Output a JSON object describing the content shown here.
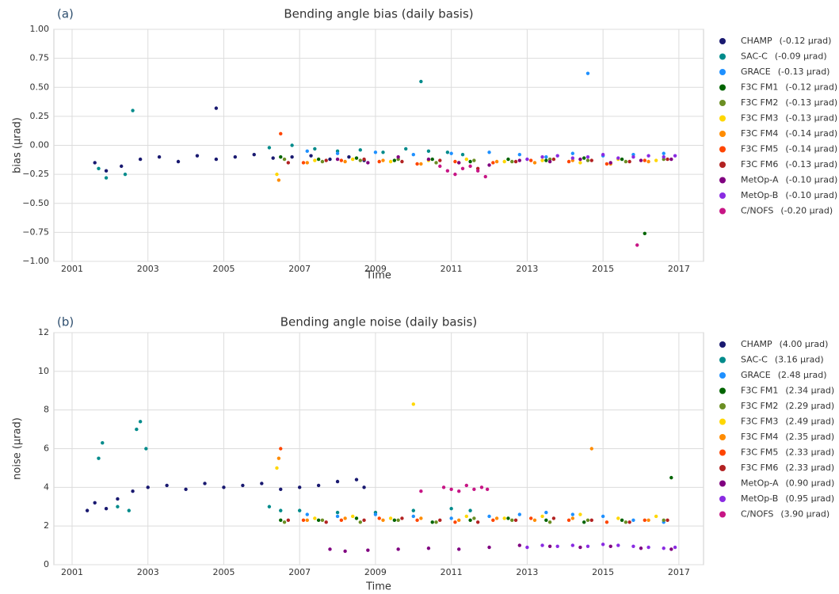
{
  "chart_data": [
    {
      "type": "scatter",
      "panel_label": "(a)",
      "title": "Bending angle bias (daily basis)",
      "x_label": "Time",
      "y_label": "bias (μrad)",
      "xlim": [
        2000.52,
        2017.65
      ],
      "xticks": [
        2001,
        2003,
        2005,
        2007,
        2009,
        2011,
        2013,
        2015,
        2017
      ],
      "ylim": [
        -1,
        1
      ],
      "yticks": [
        {
          "value": -1,
          "label": "−1.00"
        },
        {
          "value": -0.75,
          "label": "−0.75"
        },
        {
          "value": -0.5,
          "label": "−0.50"
        },
        {
          "value": -0.25,
          "label": "−0.25"
        },
        {
          "value": 0,
          "label": "0.00"
        },
        {
          "value": 0.25,
          "label": "0.25"
        },
        {
          "value": 0.5,
          "label": "0.50"
        },
        {
          "value": 0.75,
          "label": "0.75"
        },
        {
          "value": 1,
          "label": "1.00"
        }
      ],
      "grid": true,
      "legend": "outside-right",
      "series": [
        {
          "name": "CHAMP",
          "note": "(-0.12 μrad)",
          "color": "#191970",
          "x": [
            2001.6,
            2001.9,
            2002.3,
            2002.8,
            2003.3,
            2003.8,
            2004.3,
            2004.8,
            2005.3,
            2005.8,
            2006.3,
            2006.8,
            2007.3,
            2007.8,
            2008.3,
            2008.7,
            2004.8
          ],
          "values": [
            -0.15,
            -0.22,
            -0.18,
            -0.12,
            -0.1,
            -0.14,
            -0.09,
            -0.12,
            -0.1,
            -0.08,
            -0.11,
            -0.1,
            -0.09,
            -0.12,
            -0.1,
            -0.13,
            0.32
          ]
        },
        {
          "name": "SAC-C",
          "note": "(-0.09 μrad)",
          "color": "#008b8b",
          "x": [
            2001.7,
            2001.9,
            2002.4,
            2002.6,
            2006.2,
            2006.8,
            2007.4,
            2008,
            2008.6,
            2009.2,
            2009.8,
            2010.4,
            2010.9,
            2011.3,
            2010.2
          ],
          "values": [
            -0.2,
            -0.28,
            -0.25,
            0.3,
            -0.02,
            0,
            -0.03,
            -0.05,
            -0.04,
            -0.06,
            -0.03,
            -0.05,
            -0.06,
            -0.08,
            0.55
          ]
        },
        {
          "name": "GRACE",
          "note": "(-0.13 μrad)",
          "color": "#1e90ff",
          "x": [
            2007.2,
            2008,
            2009,
            2010,
            2011,
            2012,
            2012.8,
            2013.5,
            2014.2,
            2015,
            2015.8,
            2016.6,
            2014.6
          ],
          "values": [
            -0.05,
            -0.07,
            -0.06,
            -0.08,
            -0.07,
            -0.06,
            -0.08,
            -0.1,
            -0.07,
            -0.09,
            -0.08,
            -0.07,
            0.62
          ]
        },
        {
          "name": "F3C FM1",
          "note": "(-0.12 μrad)",
          "color": "#006400",
          "x": [
            2006.5,
            2007.5,
            2008.5,
            2009.5,
            2010.5,
            2011.5,
            2012.5,
            2013.5,
            2014.5,
            2015.5,
            2016.1
          ],
          "values": [
            -0.1,
            -0.12,
            -0.11,
            -0.13,
            -0.12,
            -0.14,
            -0.12,
            -0.13,
            -0.11,
            -0.12,
            -0.76
          ]
        },
        {
          "name": "F3C FM2",
          "note": "(-0.13 μrad)",
          "color": "#6b8e23",
          "x": [
            2006.6,
            2007.6,
            2008.6,
            2009.6,
            2010.6,
            2011.6,
            2012.6,
            2013.6,
            2014.6,
            2015.6,
            2016.6
          ],
          "values": [
            -0.12,
            -0.14,
            -0.13,
            -0.12,
            -0.15,
            -0.13,
            -0.14,
            -0.12,
            -0.13,
            -0.14,
            -0.12
          ]
        },
        {
          "name": "F3C FM3",
          "note": "(-0.13 μrad)",
          "color": "#ffd700",
          "x": [
            2006.4,
            2007.4,
            2008.4,
            2009.4,
            2010.4,
            2011.4,
            2012.4,
            2013.4,
            2014.4,
            2015.4,
            2016.4
          ],
          "values": [
            -0.25,
            -0.13,
            -0.12,
            -0.14,
            -0.13,
            -0.12,
            -0.14,
            -0.13,
            -0.15,
            -0.12,
            -0.13
          ]
        },
        {
          "name": "F3C FM4",
          "note": "(-0.14 μrad)",
          "color": "#ff8c00",
          "x": [
            2006.45,
            2007.2,
            2008.2,
            2009.2,
            2010.2,
            2011.2,
            2012.2,
            2013.2,
            2014.2,
            2015.2,
            2016.2
          ],
          "values": [
            -0.3,
            -0.15,
            -0.14,
            -0.13,
            -0.16,
            -0.15,
            -0.14,
            -0.15,
            -0.13,
            -0.16,
            -0.14
          ]
        },
        {
          "name": "F3C FM5",
          "note": "(-0.14 μrad)",
          "color": "#ff4500",
          "x": [
            2006.5,
            2007.1,
            2008.1,
            2009.1,
            2010.1,
            2011.1,
            2012.1,
            2013.1,
            2014.1,
            2015.1,
            2016.1
          ],
          "values": [
            0.1,
            -0.15,
            -0.13,
            -0.14,
            -0.16,
            -0.14,
            -0.15,
            -0.13,
            -0.14,
            -0.16,
            -0.13
          ]
        },
        {
          "name": "F3C FM6",
          "note": "(-0.13 μrad)",
          "color": "#b22222",
          "x": [
            2006.7,
            2007.7,
            2008.7,
            2009.7,
            2010.7,
            2011.7,
            2012.7,
            2013.7,
            2014.7,
            2015.7,
            2016.7
          ],
          "values": [
            -0.15,
            -0.13,
            -0.12,
            -0.14,
            -0.13,
            -0.2,
            -0.14,
            -0.12,
            -0.13,
            -0.14,
            -0.12
          ]
        },
        {
          "name": "MetOp-A",
          "note": "(-0.10 μrad)",
          "color": "#800080",
          "x": [
            2008,
            2008.8,
            2009.6,
            2010.4,
            2011.2,
            2012,
            2012.8,
            2013.6,
            2014.4,
            2015.2,
            2016,
            2016.8
          ],
          "values": [
            -0.12,
            -0.15,
            -0.1,
            -0.12,
            -0.15,
            -0.17,
            -0.13,
            -0.14,
            -0.12,
            -0.15,
            -0.13,
            -0.12
          ]
        },
        {
          "name": "MetOp-B",
          "note": "(-0.10 μrad)",
          "color": "#8a2be2",
          "x": [
            2013,
            2013.4,
            2013.8,
            2014.2,
            2014.6,
            2015,
            2015.4,
            2015.8,
            2016.2,
            2016.6,
            2016.9
          ],
          "values": [
            -0.12,
            -0.1,
            -0.09,
            -0.11,
            -0.1,
            -0.08,
            -0.11,
            -0.1,
            -0.09,
            -0.1,
            -0.09
          ]
        },
        {
          "name": "C/NOFS",
          "note": "(-0.20 μrad)",
          "color": "#c71585",
          "x": [
            2010.7,
            2010.9,
            2011.1,
            2011.3,
            2011.5,
            2011.7,
            2011.9,
            2015.9
          ],
          "values": [
            -0.18,
            -0.22,
            -0.25,
            -0.2,
            -0.18,
            -0.22,
            -0.27,
            -0.86
          ]
        }
      ]
    },
    {
      "type": "scatter",
      "panel_label": "(b)",
      "title": "Bending angle noise (daily basis)",
      "x_label": "Time",
      "y_label": "noise (μrad)",
      "xlim": [
        2000.52,
        2017.65
      ],
      "xticks": [
        2001,
        2003,
        2005,
        2007,
        2009,
        2011,
        2013,
        2015,
        2017
      ],
      "ylim": [
        0,
        12
      ],
      "yticks": [
        0,
        2,
        4,
        6,
        8,
        10,
        12
      ],
      "grid": true,
      "legend": "outside-right",
      "series": [
        {
          "name": "CHAMP",
          "note": "(4.00 μrad)",
          "color": "#191970",
          "x": [
            2001.4,
            2001.6,
            2001.9,
            2002.2,
            2002.6,
            2003,
            2003.5,
            2004,
            2004.5,
            2005,
            2005.5,
            2006,
            2006.5,
            2007,
            2007.5,
            2008,
            2008.5,
            2008.7
          ],
          "values": [
            2.8,
            3.2,
            2.9,
            3.4,
            3.8,
            4.0,
            4.1,
            3.9,
            4.2,
            4.0,
            4.1,
            4.2,
            3.9,
            4.0,
            4.1,
            4.3,
            4.4,
            4.0
          ]
        },
        {
          "name": "SAC-C",
          "note": "(3.16 μrad)",
          "color": "#008b8b",
          "x": [
            2001.7,
            2001.8,
            2002.2,
            2002.5,
            2002.7,
            2002.8,
            2002.95,
            2006.2,
            2006.5,
            2007,
            2008,
            2009,
            2010,
            2011,
            2011.5
          ],
          "values": [
            5.5,
            6.3,
            3.0,
            2.8,
            7.0,
            7.4,
            6.0,
            3.0,
            2.8,
            2.8,
            2.7,
            2.7,
            2.8,
            2.9,
            2.8
          ]
        },
        {
          "name": "GRACE",
          "note": "(2.48 μrad)",
          "color": "#1e90ff",
          "x": [
            2007.2,
            2008,
            2009,
            2010,
            2011,
            2012,
            2012.8,
            2013.5,
            2014.2,
            2015,
            2015.8,
            2016.6
          ],
          "values": [
            2.6,
            2.5,
            2.6,
            2.5,
            2.4,
            2.5,
            2.6,
            2.7,
            2.6,
            2.5,
            2.3,
            2.2
          ]
        },
        {
          "name": "F3C FM1",
          "note": "(2.34 μrad)",
          "color": "#006400",
          "x": [
            2006.5,
            2007.5,
            2008.5,
            2009.5,
            2010.5,
            2011.5,
            2012.5,
            2013.5,
            2014.5,
            2015.5,
            2016.8
          ],
          "values": [
            2.3,
            2.3,
            2.4,
            2.3,
            2.2,
            2.3,
            2.4,
            2.3,
            2.2,
            2.3,
            4.5
          ]
        },
        {
          "name": "F3C FM2",
          "note": "(2.29 μrad)",
          "color": "#6b8e23",
          "x": [
            2006.6,
            2007.6,
            2008.6,
            2009.6,
            2010.6,
            2011.6,
            2012.6,
            2013.6,
            2014.6,
            2015.6,
            2016.6
          ],
          "values": [
            2.2,
            2.3,
            2.2,
            2.3,
            2.2,
            2.4,
            2.3,
            2.2,
            2.3,
            2.2,
            2.3
          ]
        },
        {
          "name": "F3C FM3",
          "note": "(2.49 μrad)",
          "color": "#ffd700",
          "x": [
            2006.4,
            2007.4,
            2008.4,
            2009.4,
            2010,
            2011.4,
            2012.4,
            2013.4,
            2014.4,
            2015.4,
            2016.4
          ],
          "values": [
            5.0,
            2.4,
            2.5,
            2.4,
            8.3,
            2.5,
            2.4,
            2.5,
            2.6,
            2.4,
            2.5
          ]
        },
        {
          "name": "F3C FM4",
          "note": "(2.35 μrad)",
          "color": "#ff8c00",
          "x": [
            2006.45,
            2007.2,
            2008.2,
            2009.2,
            2010.2,
            2011.2,
            2012.2,
            2013.2,
            2014.2,
            2014.7,
            2016.2
          ],
          "values": [
            5.5,
            2.3,
            2.4,
            2.3,
            2.4,
            2.3,
            2.4,
            2.3,
            2.4,
            6.0,
            2.3
          ]
        },
        {
          "name": "F3C FM5",
          "note": "(2.33 μrad)",
          "color": "#ff4500",
          "x": [
            2006.5,
            2007.1,
            2008.1,
            2009.1,
            2010.1,
            2011.1,
            2012.1,
            2013.1,
            2014.1,
            2015.1,
            2016.1
          ],
          "values": [
            6.0,
            2.3,
            2.3,
            2.4,
            2.3,
            2.2,
            2.3,
            2.4,
            2.3,
            2.2,
            2.3
          ]
        },
        {
          "name": "F3C FM6",
          "note": "(2.33 μrad)",
          "color": "#b22222",
          "x": [
            2006.7,
            2007.7,
            2008.7,
            2009.7,
            2010.7,
            2011.7,
            2012.7,
            2013.7,
            2014.7,
            2015.7,
            2016.7
          ],
          "values": [
            2.3,
            2.2,
            2.3,
            2.4,
            2.3,
            2.2,
            2.3,
            2.4,
            2.3,
            2.2,
            2.3
          ]
        },
        {
          "name": "MetOp-A",
          "note": "(0.90 μrad)",
          "color": "#800080",
          "x": [
            2007.8,
            2008.2,
            2008.8,
            2009.6,
            2010.4,
            2011.2,
            2012,
            2012.8,
            2013.6,
            2014.4,
            2015.2,
            2016,
            2016.8
          ],
          "values": [
            0.8,
            0.7,
            0.75,
            0.8,
            0.85,
            0.8,
            0.9,
            1.0,
            0.95,
            0.9,
            0.95,
            0.85,
            0.8
          ]
        },
        {
          "name": "MetOp-B",
          "note": "(0.95 μrad)",
          "color": "#8a2be2",
          "x": [
            2013,
            2013.4,
            2013.8,
            2014.2,
            2014.6,
            2015,
            2015.4,
            2015.8,
            2016.2,
            2016.6,
            2016.9
          ],
          "values": [
            0.9,
            1.0,
            0.95,
            1.0,
            0.95,
            1.05,
            1.0,
            0.95,
            0.9,
            0.85,
            0.9
          ]
        },
        {
          "name": "C/NOFS",
          "note": "(3.90 μrad)",
          "color": "#c71585",
          "x": [
            2010.2,
            2010.8,
            2011,
            2011.2,
            2011.4,
            2011.6,
            2011.8,
            2011.95
          ],
          "values": [
            3.8,
            4.0,
            3.9,
            3.8,
            4.1,
            3.9,
            4.0,
            3.9
          ]
        }
      ]
    }
  ]
}
